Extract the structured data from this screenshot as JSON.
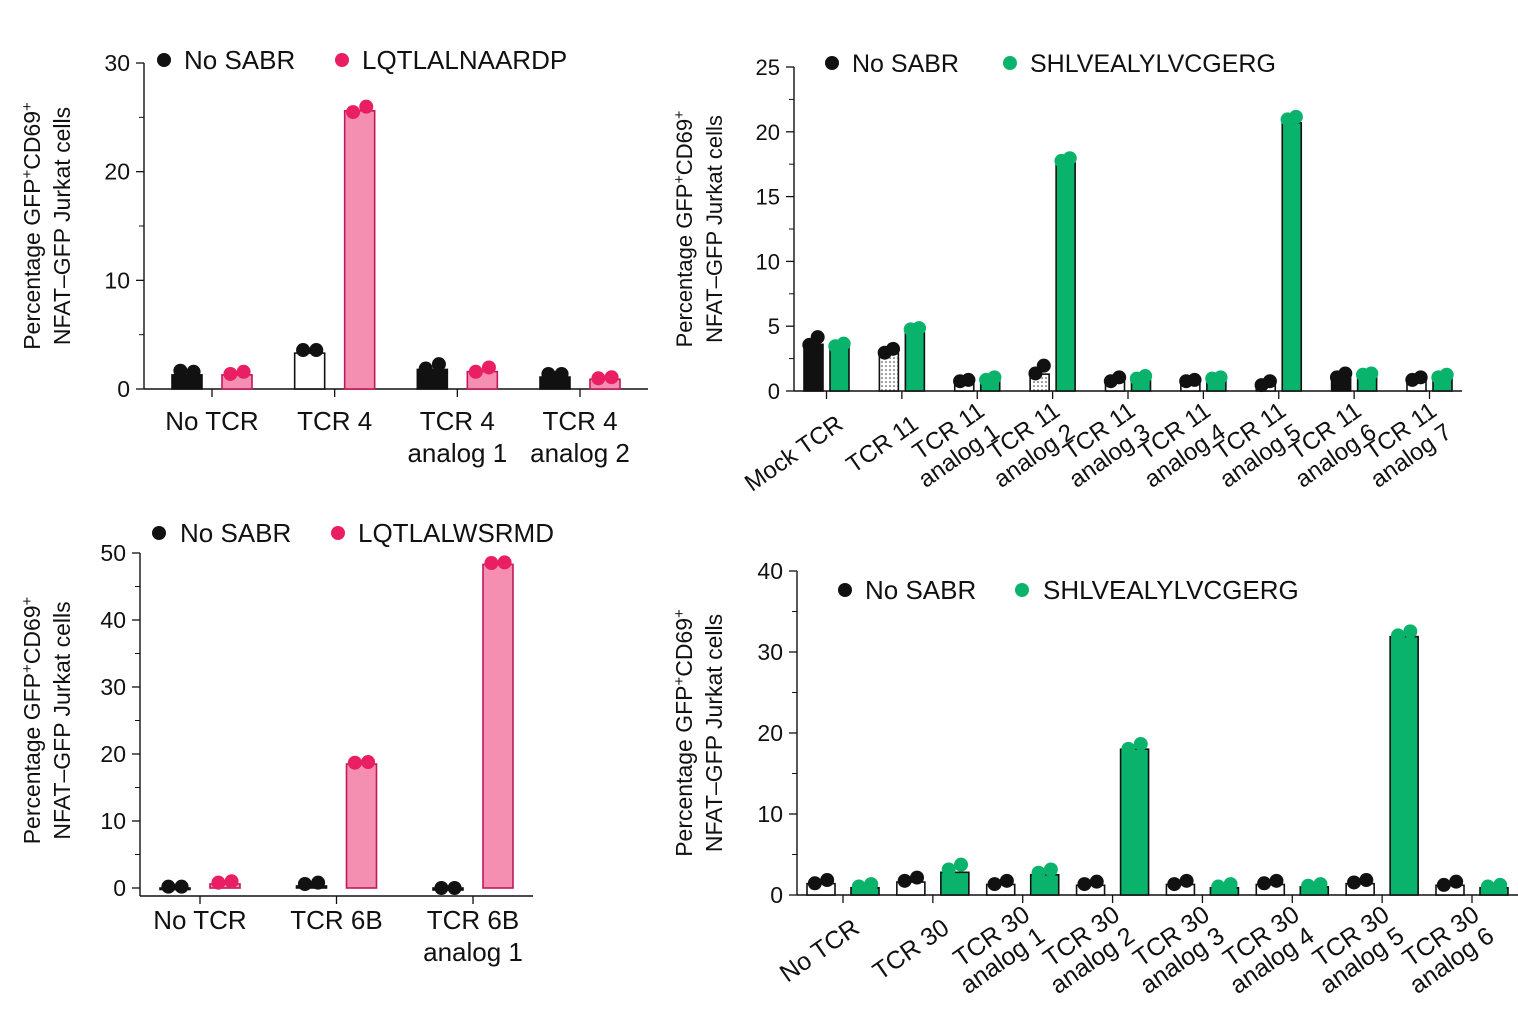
{
  "colors": {
    "pink": "#f48fb1",
    "pink_dot": "#e91e63",
    "green": "#0ab36b",
    "black": "#111111",
    "white": "#ffffff"
  },
  "y_axis_label": {
    "line1": "Percentage GFP",
    "sup1": "+",
    "mid": "CD69",
    "sup2": "+",
    "line2": "NFAT–GFP Jurkat cells"
  },
  "chart_data": [
    {
      "id": "A",
      "type": "bar",
      "title": "",
      "xlabel": "",
      "ylabel": "Percentage GFP+CD69+ NFAT–GFP Jurkat cells",
      "ylim": [
        0,
        30
      ],
      "yticks": [
        "0",
        "10",
        "20",
        "30"
      ],
      "legend_position": "top",
      "series": [
        {
          "name": "No SABR",
          "values": [
            1.3,
            3.3,
            1.8,
            1.1
          ],
          "points": [
            [
              1.5,
              1.4
            ],
            [
              3.4,
              3.4
            ],
            [
              1.7,
              2.1
            ],
            [
              1.2,
              1.2
            ]
          ]
        },
        {
          "name": "LQTLALNAARDP",
          "values": [
            1.3,
            25.6,
            1.6,
            0.9
          ],
          "points": [
            [
              1.2,
              1.4
            ],
            [
              25.3,
              25.8
            ],
            [
              1.4,
              1.8
            ],
            [
              0.8,
              0.9
            ]
          ]
        }
      ],
      "categories": [
        [
          "No TCR"
        ],
        [
          "TCR 4"
        ],
        [
          "TCR 4",
          "analog 1"
        ],
        [
          "TCR 4",
          "analog 2"
        ]
      ]
    },
    {
      "id": "B",
      "type": "bar",
      "title": "",
      "xlabel": "",
      "ylabel": "Percentage GFP+CD69+ NFAT–GFP Jurkat cells",
      "ylim": [
        0,
        25
      ],
      "yticks": [
        "0",
        "5",
        "10",
        "15",
        "20",
        "25"
      ],
      "legend_position": "top",
      "series": [
        {
          "name": "No SABR",
          "values": [
            3.6,
            2.9,
            0.6,
            1.3,
            0.7,
            0.6,
            0.4,
            1.0,
            0.8
          ],
          "points": [
            [
              3.4,
              4.0
            ],
            [
              2.8,
              3.1
            ],
            [
              0.6,
              0.7
            ],
            [
              1.2,
              1.8
            ],
            [
              0.6,
              0.9
            ],
            [
              0.6,
              0.7
            ],
            [
              0.3,
              0.6
            ],
            [
              0.9,
              1.2
            ],
            [
              0.7,
              0.9
            ]
          ]
        },
        {
          "name": "SHLVEALYLVCGERG",
          "values": [
            3.4,
            4.5,
            0.8,
            17.6,
            0.9,
            0.9,
            20.7,
            1.1,
            1.0
          ],
          "points": [
            [
              3.3,
              3.5
            ],
            [
              4.6,
              4.7
            ],
            [
              0.7,
              0.9
            ],
            [
              17.6,
              17.8
            ],
            [
              0.8,
              1.0
            ],
            [
              0.8,
              0.9
            ],
            [
              20.8,
              21.0
            ],
            [
              1.1,
              1.2
            ],
            [
              0.9,
              1.1
            ]
          ]
        }
      ],
      "categories": [
        "Mock TCR",
        "TCR 11",
        "TCR 11 analog 1",
        "TCR 11 analog 2",
        "TCR 11 analog 3",
        "TCR 11 analog 4",
        "TCR 11 analog 5",
        "TCR 11 analog 6",
        "TCR 11 analog 7"
      ],
      "category_lines": [
        [
          "Mock TCR"
        ],
        [
          "TCR 11"
        ],
        [
          "TCR 11",
          "analog 1"
        ],
        [
          "TCR 11",
          "analog 2"
        ],
        [
          "TCR 11",
          "analog 3"
        ],
        [
          "TCR 11",
          "analog 4"
        ],
        [
          "TCR 11",
          "analog 5"
        ],
        [
          "TCR 11",
          "analog 6"
        ],
        [
          "TCR 11",
          "analog 7"
        ]
      ]
    },
    {
      "id": "C",
      "type": "bar",
      "title": "",
      "xlabel": "",
      "ylabel": "Percentage GFP+CD69+ NFAT–GFP Jurkat cells",
      "ylim": [
        0,
        50
      ],
      "yticks": [
        "0",
        "10",
        "20",
        "30",
        "40",
        "50"
      ],
      "legend_position": "top",
      "series": [
        {
          "name": "No SABR",
          "values": [
            -0.1,
            0.3,
            -0.3
          ],
          "points": [
            [
              -0.1,
              -0.1
            ],
            [
              0.3,
              0.5
            ],
            [
              -0.3,
              -0.3
            ]
          ]
        },
        {
          "name": "LQTLALWSRMD",
          "values": [
            0.6,
            18.5,
            48.3
          ],
          "points": [
            [
              0.5,
              0.7
            ],
            [
              18.4,
              18.5
            ],
            [
              48.2,
              48.3
            ]
          ]
        }
      ],
      "categories": [
        [
          "No TCR"
        ],
        [
          "TCR 6B"
        ],
        [
          "TCR 6B",
          "analog 1"
        ]
      ]
    },
    {
      "id": "D",
      "type": "bar",
      "title": "",
      "xlabel": "",
      "ylabel": "Percentage GFP+CD69+ NFAT–GFP Jurkat cells",
      "ylim": [
        0,
        40
      ],
      "yticks": [
        "0",
        "10",
        "20",
        "30",
        "40"
      ],
      "legend_position": "top",
      "series": [
        {
          "name": "No SABR",
          "values": [
            1.4,
            1.6,
            1.3,
            1.2,
            1.3,
            1.3,
            1.4,
            1.2
          ],
          "points": [
            [
              1.2,
              1.6
            ],
            [
              1.5,
              1.9
            ],
            [
              1.1,
              1.5
            ],
            [
              1.1,
              1.4
            ],
            [
              1.1,
              1.5
            ],
            [
              1.2,
              1.5
            ],
            [
              1.3,
              1.6
            ],
            [
              1.0,
              1.4
            ]
          ]
        },
        {
          "name": "SHLVEALYLVCGERG",
          "values": [
            0.9,
            2.8,
            2.5,
            18.0,
            0.9,
            1.0,
            31.9,
            0.9
          ],
          "points": [
            [
              0.8,
              1.1
            ],
            [
              2.9,
              3.5
            ],
            [
              2.5,
              2.9
            ],
            [
              17.8,
              18.4
            ],
            [
              0.8,
              1.1
            ],
            [
              0.9,
              1.1
            ],
            [
              31.8,
              32.3
            ],
            [
              0.8,
              1.0
            ]
          ]
        }
      ],
      "categories": [
        "No TCR",
        "TCR 30",
        "TCR 30 analog 1",
        "TCR 30 analog 2",
        "TCR 30 analog 3",
        "TCR 30 analog 4",
        "TCR 30 analog 5",
        "TCR 30 analog 6"
      ],
      "category_lines": [
        [
          "No TCR"
        ],
        [
          "TCR 30"
        ],
        [
          "TCR 30",
          "analog 1"
        ],
        [
          "TCR 30",
          "analog 2"
        ],
        [
          "TCR 30",
          "analog 3"
        ],
        [
          "TCR 30",
          "analog 4"
        ],
        [
          "TCR 30",
          "analog 5"
        ],
        [
          "TCR 30",
          "analog 6"
        ]
      ]
    }
  ]
}
